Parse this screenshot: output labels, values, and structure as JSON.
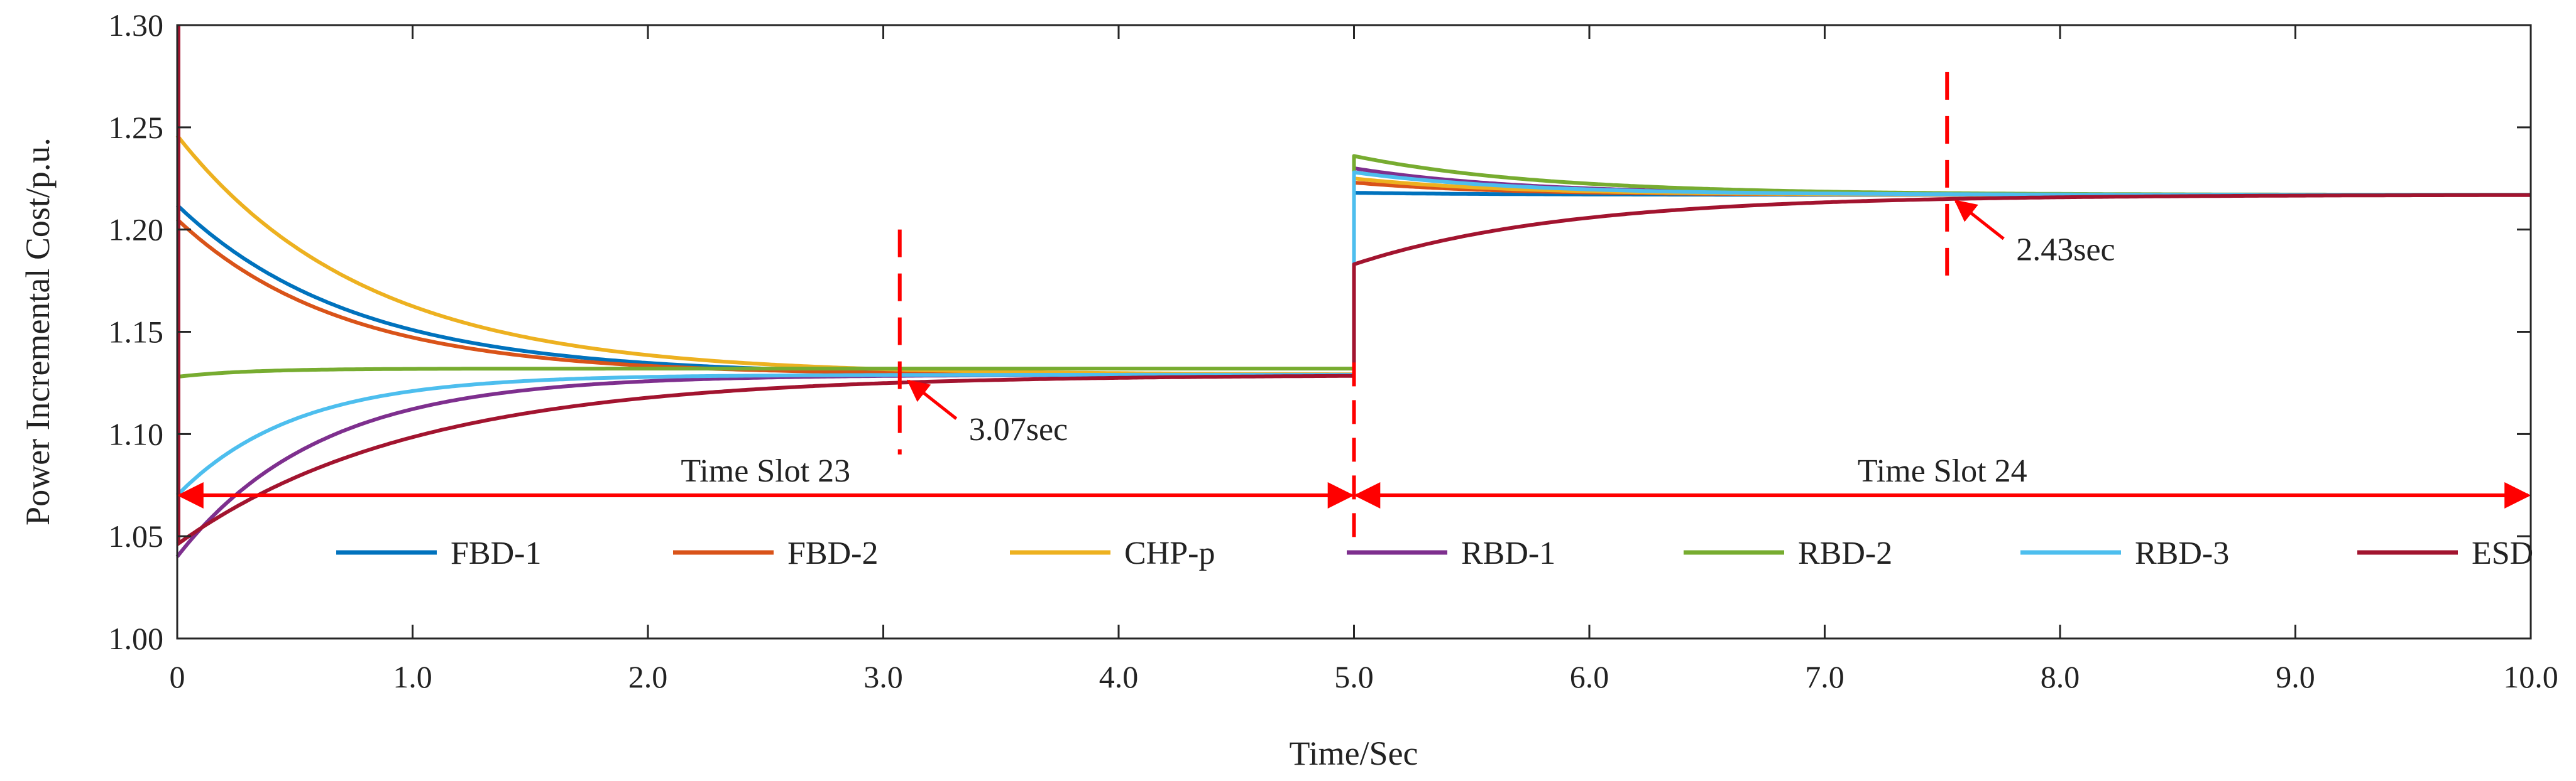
{
  "chart_data": {
    "type": "line",
    "title": "",
    "xlabel": "Time/Sec",
    "ylabel": "Power Incremental Cost/p.u.",
    "xlim": [
      0,
      10
    ],
    "ylim": [
      1.0,
      1.3
    ],
    "xticks": [
      0,
      1,
      2,
      3,
      4,
      5,
      6,
      7,
      8,
      9,
      10
    ],
    "xtick_labels": [
      "0",
      "1.0",
      "2.0",
      "3.0",
      "4.0",
      "5.0",
      "6.0",
      "7.0",
      "8.0",
      "9.0",
      "10.0"
    ],
    "yticks": [
      1.0,
      1.05,
      1.1,
      1.15,
      1.2,
      1.25,
      1.3
    ],
    "ytick_labels": [
      "1.00",
      "1.05",
      "1.10",
      "1.15",
      "1.20",
      "1.25",
      "1.30"
    ],
    "grid": false,
    "legend_position": "bottom",
    "series": [
      {
        "name": "FBD-1",
        "color": "#0072BD",
        "start1": 1.212,
        "final1": 1.129,
        "tau1": 0.75,
        "start2": 1.218,
        "final2": 1.217,
        "tau2": 0.6
      },
      {
        "name": "FBD-2",
        "color": "#D95319",
        "start1": 1.205,
        "final1": 1.129,
        "tau1": 0.7,
        "start2": 1.223,
        "final2": 1.217,
        "tau2": 0.6
      },
      {
        "name": "CHP-p",
        "color": "#EDB120",
        "start1": 1.246,
        "final1": 1.129,
        "tau1": 0.8,
        "start2": 1.225,
        "final2": 1.217,
        "tau2": 0.65
      },
      {
        "name": "RBD-1",
        "color": "#7E2F8E",
        "start1": 1.04,
        "final1": 1.129,
        "tau1": 0.6,
        "start2": 1.23,
        "final2": 1.217,
        "tau2": 0.7
      },
      {
        "name": "RBD-2",
        "color": "#77AC30",
        "start1": 1.128,
        "final1": 1.132,
        "tau1": 0.3,
        "start2": 1.236,
        "final2": 1.217,
        "tau2": 0.8
      },
      {
        "name": "RBD-3",
        "color": "#4DBEEE",
        "start1": 1.07,
        "final1": 1.129,
        "tau1": 0.5,
        "start2": 1.228,
        "final2": 1.217,
        "tau2": 0.7
      },
      {
        "name": "ESD",
        "color": "#A2142F",
        "start1": 1.046,
        "final1": 1.129,
        "tau1": 1.0,
        "start2": 1.183,
        "final2": 1.217,
        "tau2": 0.9
      }
    ],
    "convergence_markers": [
      {
        "x": 3.07,
        "label": "3.07sec",
        "line_y_range": [
          1.09,
          1.2
        ]
      },
      {
        "x": 7.52,
        "label": "2.43sec",
        "line_y_range": [
          1.175,
          1.277
        ]
      }
    ],
    "time_slots": [
      {
        "label": "Time Slot 23",
        "x_range": [
          0,
          5
        ],
        "y": 1.07
      },
      {
        "label": "Time Slot 24",
        "x_range": [
          5,
          10
        ],
        "y": 1.07
      }
    ],
    "annotation_color": "#FF0000"
  }
}
